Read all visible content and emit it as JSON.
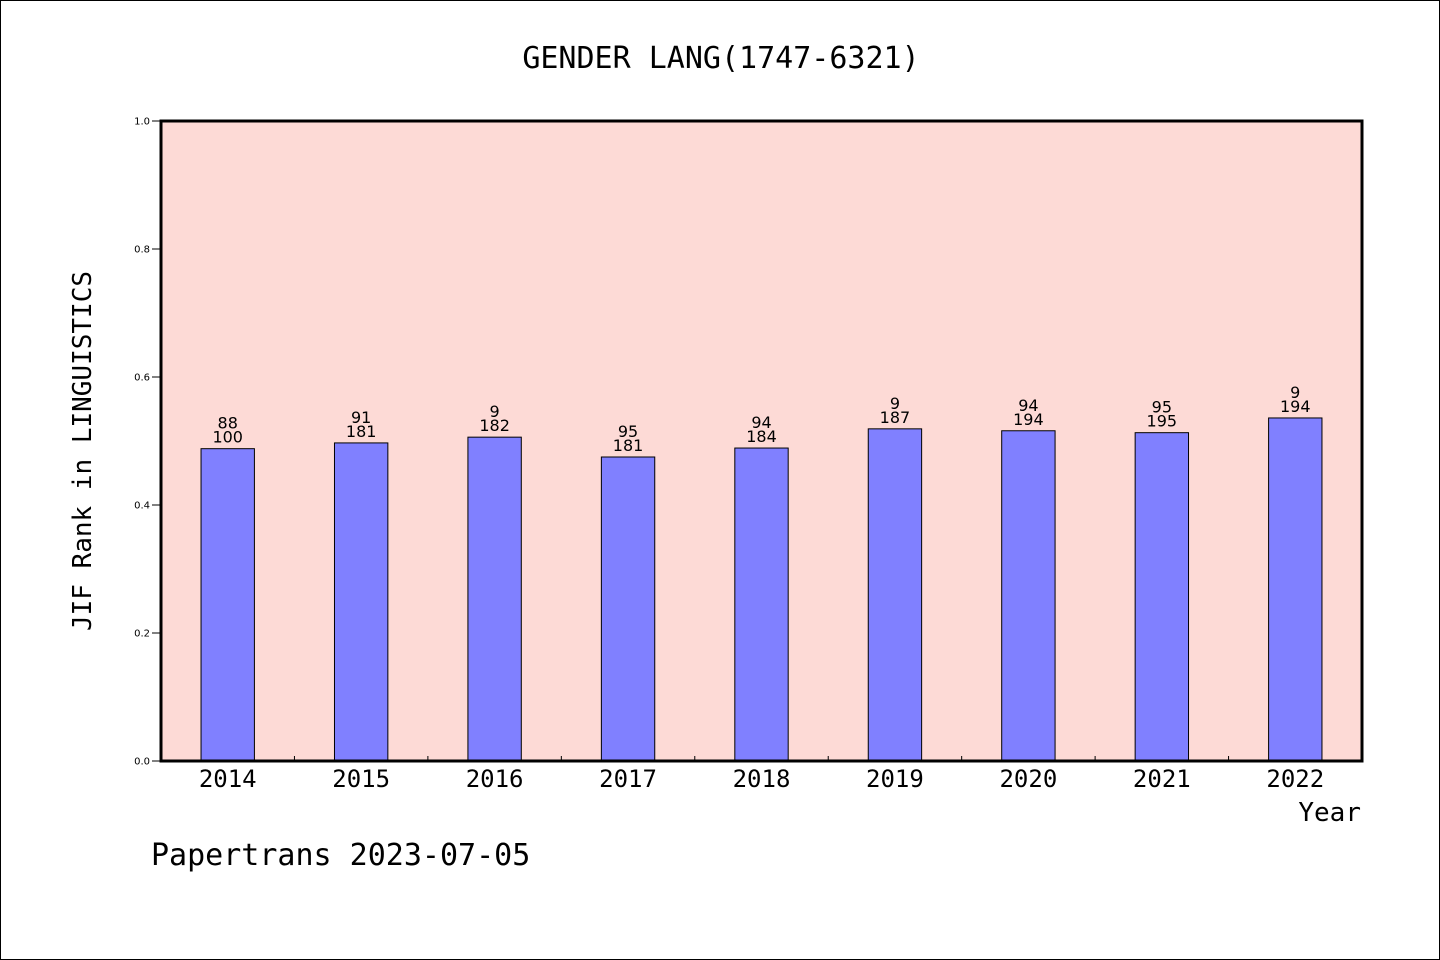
{
  "chart_data": {
    "type": "bar",
    "title": "GENDER LANG(1747-6321)",
    "xlabel": "Year",
    "ylabel": "JIF Rank in LINGUISTICS",
    "ylim": [
      0,
      1.0
    ],
    "yticks": [
      "0.0",
      "0.2",
      "0.4",
      "0.6",
      "0.8",
      "1.0"
    ],
    "grid": false,
    "colors": {
      "plot_background": "#fddad6",
      "bar": "#8080ff"
    },
    "categories": [
      "2014",
      "2015",
      "2016",
      "2017",
      "2018",
      "2019",
      "2020",
      "2021",
      "2022"
    ],
    "values": [
      0.488,
      0.497,
      0.506,
      0.475,
      0.489,
      0.519,
      0.516,
      0.513,
      0.536
    ],
    "data_labels": [
      {
        "top": "88",
        "bottom": "100"
      },
      {
        "top": "91",
        "bottom": "181"
      },
      {
        "top": "9",
        "bottom": "182"
      },
      {
        "top": "95",
        "bottom": "181"
      },
      {
        "top": "94",
        "bottom": "184"
      },
      {
        "top": "9",
        "bottom": "187"
      },
      {
        "top": "94",
        "bottom": "194"
      },
      {
        "top": "95",
        "bottom": "195"
      },
      {
        "top": "9",
        "bottom": "194"
      }
    ]
  },
  "footer": {
    "text": "Papertrans 2023-07-05"
  }
}
